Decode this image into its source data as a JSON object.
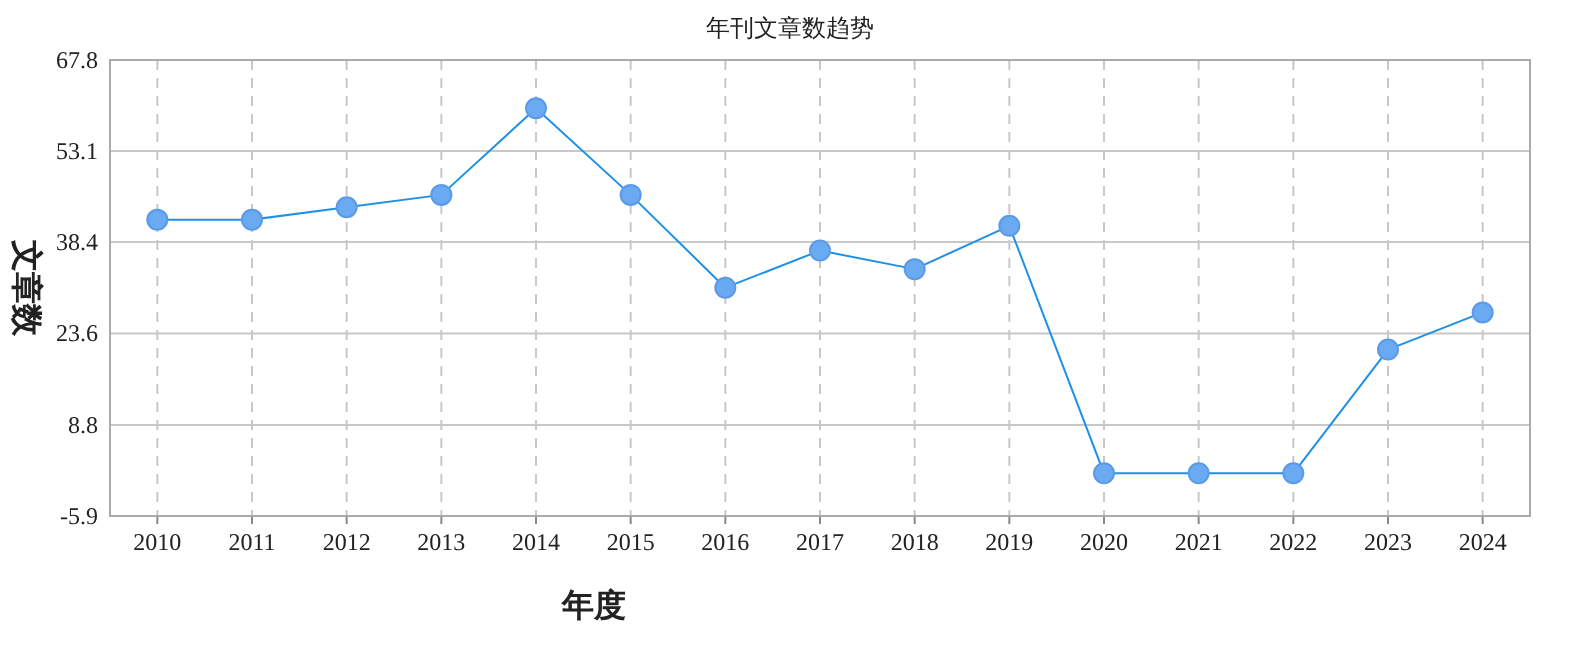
{
  "chart_data": {
    "type": "line",
    "title": "年刊文章数趋势",
    "xlabel": "年度",
    "ylabel": "文章数",
    "categories": [
      "2010",
      "2011",
      "2012",
      "2013",
      "2014",
      "2015",
      "2016",
      "2017",
      "2018",
      "2019",
      "2020",
      "2021",
      "2022",
      "2023",
      "2024"
    ],
    "series": [
      {
        "color": "#1e90e6",
        "values": [
          42,
          42,
          44,
          46,
          60,
          46,
          31,
          37,
          34,
          41,
          1,
          1,
          1,
          21,
          27
        ]
      }
    ],
    "ylim": [
      -5.9,
      67.8
    ],
    "yticks": [
      -5.9,
      8.8,
      23.6,
      38.4,
      53.1,
      67.8
    ],
    "grid": true,
    "marker": "circle",
    "line_style": "solid"
  }
}
